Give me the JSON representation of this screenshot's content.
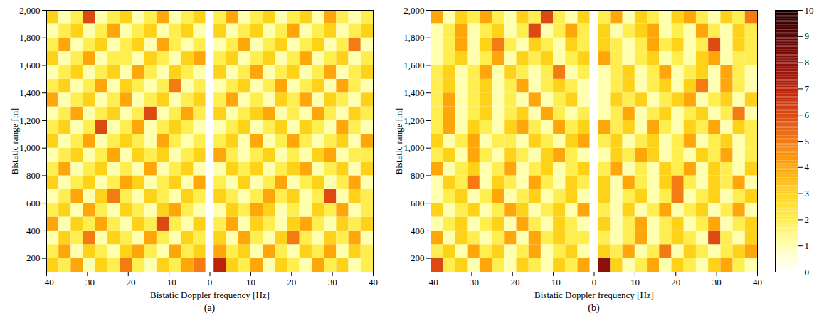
{
  "chart_data": [
    {
      "type": "heatmap",
      "caption": "(a)",
      "xlabel": "Bistatic Doppler frequency [Hz]",
      "ylabel": "Bistatic range [m]",
      "xlim": [
        -40,
        40
      ],
      "xticks": [
        -40,
        -30,
        -20,
        -10,
        0,
        10,
        20,
        30,
        40
      ],
      "ylim": [
        100,
        2000
      ],
      "yticks": [
        200,
        400,
        600,
        800,
        1000,
        1200,
        1400,
        1600,
        1800,
        2000
      ],
      "colorbar_lim": [
        0,
        10
      ],
      "colorbar_ticks": [
        0,
        1,
        2,
        3,
        4,
        5,
        6,
        7,
        8,
        9,
        10
      ],
      "doppler_edges": [
        -40,
        -37,
        -34,
        -31,
        -28,
        -25,
        -22,
        -19,
        -16,
        -13,
        -10,
        -7,
        -4,
        -1,
        1,
        4,
        7,
        10,
        13,
        16,
        19,
        22,
        25,
        28,
        31,
        34,
        37,
        40
      ],
      "range_edges": [
        100,
        200,
        300,
        400,
        500,
        600,
        700,
        800,
        900,
        1000,
        1100,
        1200,
        1300,
        1400,
        1500,
        1600,
        1700,
        1800,
        1900,
        2000
      ],
      "cells": [
        [
          3,
          2,
          4,
          1,
          3,
          2,
          5,
          2,
          1,
          3,
          2,
          4,
          5,
          0,
          7,
          3,
          2,
          4,
          1,
          3,
          2,
          1,
          4,
          2,
          3,
          1,
          2
        ],
        [
          2,
          4,
          1,
          3,
          2,
          1,
          3,
          4,
          2,
          1,
          4,
          2,
          3,
          0,
          4,
          2,
          3,
          1,
          4,
          2,
          1,
          3,
          2,
          4,
          1,
          3,
          2
        ],
        [
          1,
          3,
          2,
          5,
          1,
          3,
          2,
          1,
          4,
          2,
          1,
          3,
          2,
          0,
          3,
          1,
          4,
          2,
          1,
          3,
          5,
          2,
          1,
          3,
          2,
          4,
          1
        ],
        [
          4,
          1,
          3,
          2,
          4,
          2,
          1,
          3,
          2,
          6,
          2,
          1,
          3,
          0,
          2,
          4,
          1,
          3,
          2,
          1,
          3,
          4,
          2,
          1,
          3,
          2,
          3
        ],
        [
          2,
          3,
          1,
          4,
          2,
          1,
          3,
          2,
          1,
          3,
          4,
          2,
          1,
          0,
          1,
          3,
          2,
          4,
          3,
          1,
          2,
          1,
          3,
          2,
          4,
          1,
          2
        ],
        [
          1,
          2,
          4,
          1,
          3,
          5,
          2,
          1,
          3,
          2,
          1,
          3,
          2,
          0,
          3,
          2,
          1,
          2,
          4,
          2,
          3,
          1,
          2,
          6,
          1,
          3,
          2
        ],
        [
          3,
          1,
          2,
          3,
          1,
          2,
          4,
          3,
          1,
          2,
          3,
          1,
          4,
          0,
          2,
          1,
          3,
          1,
          2,
          4,
          1,
          2,
          3,
          1,
          2,
          4,
          1
        ],
        [
          2,
          4,
          1,
          2,
          3,
          1,
          2,
          1,
          4,
          1,
          2,
          3,
          1,
          0,
          1,
          3,
          2,
          3,
          1,
          2,
          3,
          4,
          1,
          2,
          3,
          1,
          3
        ],
        [
          1,
          2,
          3,
          1,
          2,
          4,
          1,
          3,
          2,
          3,
          1,
          2,
          3,
          0,
          4,
          2,
          1,
          2,
          3,
          1,
          2,
          1,
          3,
          4,
          1,
          2,
          2
        ],
        [
          3,
          1,
          2,
          4,
          1,
          2,
          3,
          2,
          1,
          4,
          2,
          1,
          2,
          0,
          2,
          3,
          1,
          4,
          1,
          2,
          4,
          2,
          1,
          2,
          3,
          1,
          4
        ],
        [
          2,
          3,
          1,
          2,
          6,
          1,
          2,
          4,
          1,
          2,
          3,
          2,
          1,
          0,
          1,
          2,
          3,
          1,
          2,
          3,
          1,
          3,
          2,
          1,
          4,
          2,
          1
        ],
        [
          1,
          2,
          4,
          1,
          2,
          3,
          1,
          2,
          6,
          1,
          2,
          4,
          2,
          0,
          3,
          1,
          2,
          3,
          4,
          1,
          2,
          1,
          4,
          2,
          1,
          3,
          2
        ],
        [
          4,
          1,
          2,
          3,
          1,
          2,
          4,
          1,
          2,
          3,
          1,
          2,
          3,
          0,
          2,
          4,
          1,
          2,
          1,
          3,
          2,
          4,
          1,
          3,
          2,
          1,
          3
        ],
        [
          2,
          3,
          1,
          2,
          4,
          1,
          3,
          2,
          1,
          2,
          5,
          1,
          2,
          0,
          1,
          2,
          3,
          1,
          2,
          4,
          1,
          2,
          3,
          1,
          4,
          2,
          1
        ],
        [
          1,
          2,
          3,
          1,
          2,
          3,
          1,
          4,
          2,
          1,
          3,
          2,
          1,
          0,
          3,
          1,
          2,
          4,
          1,
          2,
          3,
          1,
          2,
          4,
          1,
          2,
          3
        ],
        [
          3,
          1,
          2,
          4,
          1,
          2,
          2,
          1,
          3,
          2,
          1,
          3,
          4,
          0,
          2,
          3,
          1,
          2,
          3,
          1,
          2,
          4,
          1,
          2,
          3,
          1,
          2
        ],
        [
          2,
          4,
          1,
          2,
          3,
          1,
          2,
          3,
          1,
          4,
          2,
          1,
          2,
          0,
          1,
          2,
          4,
          1,
          2,
          3,
          1,
          2,
          3,
          1,
          2,
          5,
          1
        ],
        [
          1,
          2,
          3,
          1,
          2,
          4,
          1,
          2,
          3,
          1,
          2,
          3,
          1,
          0,
          3,
          1,
          2,
          3,
          1,
          2,
          4,
          1,
          2,
          3,
          1,
          2,
          3
        ],
        [
          3,
          1,
          2,
          6,
          1,
          2,
          3,
          1,
          2,
          4,
          1,
          2,
          3,
          0,
          2,
          4,
          1,
          2,
          3,
          1,
          2,
          3,
          1,
          4,
          2,
          1,
          2
        ]
      ]
    },
    {
      "type": "heatmap",
      "caption": "(b)",
      "xlabel": "Bistatic Doppler frequency [Hz]",
      "ylabel": "Bistatic range [m]",
      "xlim": [
        -40,
        40
      ],
      "xticks": [
        -40,
        -30,
        -20,
        -10,
        0,
        10,
        20,
        30,
        40
      ],
      "ylim": [
        100,
        2000
      ],
      "yticks": [
        200,
        400,
        600,
        800,
        1000,
        1200,
        1400,
        1600,
        1800,
        2000
      ],
      "colorbar_lim": [
        0,
        10
      ],
      "colorbar_ticks": [
        0,
        1,
        2,
        3,
        4,
        5,
        6,
        7,
        8,
        9,
        10
      ],
      "doppler_edges": [
        -40,
        -37,
        -34,
        -31,
        -28,
        -25,
        -22,
        -19,
        -16,
        -13,
        -10,
        -7,
        -4,
        -1,
        1,
        4,
        7,
        10,
        13,
        16,
        19,
        22,
        25,
        28,
        31,
        34,
        37,
        40
      ],
      "range_edges": [
        100,
        200,
        300,
        400,
        500,
        600,
        700,
        800,
        900,
        1000,
        1100,
        1200,
        1300,
        1400,
        1500,
        1600,
        1700,
        1800,
        1900,
        2000
      ],
      "cells": [
        [
          6,
          2,
          3,
          1,
          4,
          2,
          1,
          3,
          2,
          1,
          3,
          2,
          4,
          0,
          8,
          3,
          1,
          2,
          4,
          1,
          3,
          2,
          1,
          3,
          4,
          2,
          1
        ],
        [
          2,
          3,
          1,
          4,
          2,
          3,
          1,
          2,
          4,
          1,
          2,
          3,
          1,
          0,
          3,
          2,
          4,
          1,
          2,
          5,
          1,
          3,
          2,
          1,
          2,
          3,
          4
        ],
        [
          4,
          1,
          3,
          2,
          1,
          2,
          4,
          1,
          4,
          2,
          3,
          2,
          2,
          0,
          2,
          1,
          2,
          4,
          1,
          2,
          3,
          2,
          1,
          6,
          2,
          1,
          3
        ],
        [
          1,
          2,
          3,
          1,
          2,
          3,
          1,
          4,
          2,
          1,
          3,
          2,
          1,
          0,
          3,
          1,
          2,
          4,
          1,
          2,
          3,
          1,
          2,
          4,
          1,
          2,
          3
        ],
        [
          3,
          1,
          2,
          3,
          1,
          2,
          4,
          3,
          1,
          2,
          3,
          1,
          4,
          0,
          2,
          1,
          3,
          1,
          2,
          4,
          1,
          2,
          3,
          1,
          2,
          4,
          1
        ],
        [
          1,
          2,
          3,
          1,
          2,
          4,
          1,
          2,
          3,
          1,
          2,
          3,
          1,
          0,
          3,
          1,
          2,
          3,
          1,
          2,
          5,
          1,
          2,
          3,
          1,
          2,
          3
        ],
        [
          1,
          3,
          2,
          5,
          1,
          3,
          2,
          1,
          4,
          2,
          1,
          3,
          2,
          0,
          3,
          1,
          4,
          2,
          1,
          3,
          5,
          2,
          1,
          3,
          2,
          4,
          1
        ],
        [
          4,
          1,
          2,
          3,
          1,
          2,
          4,
          1,
          2,
          3,
          1,
          2,
          3,
          0,
          2,
          4,
          1,
          2,
          1,
          3,
          2,
          4,
          1,
          3,
          2,
          1,
          3
        ],
        [
          2,
          3,
          1,
          4,
          2,
          1,
          3,
          2,
          1,
          3,
          4,
          2,
          1,
          0,
          1,
          3,
          2,
          4,
          3,
          1,
          2,
          1,
          3,
          2,
          4,
          1,
          2
        ],
        [
          3,
          1,
          2,
          4,
          1,
          2,
          2,
          1,
          3,
          2,
          1,
          3,
          4,
          0,
          2,
          3,
          1,
          2,
          3,
          1,
          2,
          4,
          1,
          2,
          3,
          1,
          2
        ],
        [
          2,
          4,
          1,
          3,
          2,
          1,
          3,
          4,
          2,
          1,
          4,
          2,
          3,
          0,
          4,
          2,
          3,
          1,
          4,
          2,
          1,
          3,
          2,
          4,
          1,
          3,
          2
        ],
        [
          2,
          4,
          1,
          2,
          3,
          1,
          2,
          3,
          1,
          4,
          2,
          1,
          2,
          0,
          1,
          2,
          4,
          1,
          2,
          3,
          1,
          2,
          3,
          1,
          2,
          5,
          1
        ],
        [
          2,
          4,
          1,
          2,
          3,
          1,
          2,
          1,
          4,
          1,
          2,
          3,
          1,
          0,
          1,
          3,
          2,
          3,
          1,
          2,
          3,
          4,
          1,
          2,
          3,
          1,
          3
        ],
        [
          2,
          3,
          1,
          2,
          3,
          1,
          2,
          4,
          1,
          2,
          3,
          2,
          1,
          0,
          1,
          2,
          3,
          1,
          2,
          3,
          1,
          3,
          5,
          1,
          4,
          2,
          1
        ],
        [
          2,
          3,
          1,
          2,
          4,
          1,
          3,
          2,
          1,
          2,
          5,
          1,
          2,
          0,
          1,
          2,
          3,
          1,
          2,
          4,
          1,
          2,
          3,
          1,
          4,
          2,
          1
        ],
        [
          1,
          2,
          3,
          1,
          2,
          4,
          1,
          3,
          2,
          3,
          1,
          2,
          3,
          0,
          4,
          2,
          1,
          2,
          3,
          1,
          2,
          1,
          3,
          4,
          1,
          2,
          2
        ],
        [
          1,
          2,
          4,
          1,
          3,
          5,
          2,
          1,
          3,
          2,
          1,
          3,
          2,
          0,
          3,
          2,
          1,
          2,
          4,
          2,
          3,
          1,
          2,
          6,
          1,
          3,
          2
        ],
        [
          1,
          2,
          4,
          1,
          2,
          3,
          1,
          2,
          6,
          1,
          2,
          4,
          2,
          0,
          3,
          1,
          2,
          3,
          4,
          1,
          2,
          1,
          4,
          2,
          1,
          3,
          2
        ],
        [
          4,
          1,
          3,
          2,
          4,
          2,
          1,
          3,
          2,
          6,
          2,
          1,
          3,
          0,
          2,
          4,
          1,
          3,
          2,
          1,
          3,
          4,
          2,
          1,
          3,
          2,
          5
        ]
      ]
    }
  ]
}
